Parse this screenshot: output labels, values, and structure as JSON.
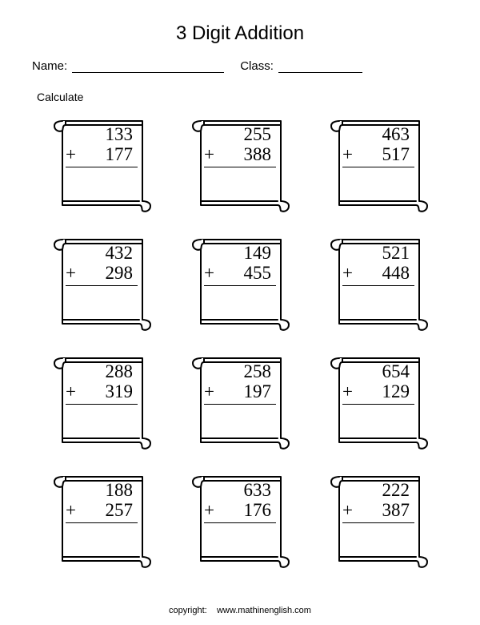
{
  "title": "3 Digit Addition",
  "name_label": "Name:",
  "class_label": "Class:",
  "instruction": "Calculate",
  "operator": "+",
  "problems": [
    {
      "a": "133",
      "b": "177"
    },
    {
      "a": "255",
      "b": "388"
    },
    {
      "a": "463",
      "b": "517"
    },
    {
      "a": "432",
      "b": "298"
    },
    {
      "a": "149",
      "b": "455"
    },
    {
      "a": "521",
      "b": "448"
    },
    {
      "a": "288",
      "b": "319"
    },
    {
      "a": "258",
      "b": "197"
    },
    {
      "a": "654",
      "b": "129"
    },
    {
      "a": "188",
      "b": "257"
    },
    {
      "a": "633",
      "b": "176"
    },
    {
      "a": "222",
      "b": "387"
    }
  ],
  "copyright_label": "copyright:",
  "copyright_url": "www.mathinenglish.com",
  "style": {
    "grid_cols": 3,
    "grid_rows": 4,
    "title_fontsize": 24,
    "number_fontsize": 23,
    "label_fontsize": 15,
    "footer_fontsize": 11,
    "text_color": "#000000",
    "background_color": "#ffffff",
    "scroll_stroke": "#000000",
    "scroll_fill": "#ffffff",
    "scroll_stroke_width": 2
  }
}
